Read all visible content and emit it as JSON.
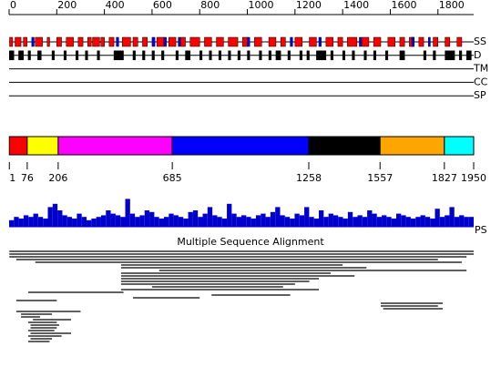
{
  "xlim": [
    0,
    1950
  ],
  "ruler_ticks": [
    0,
    200,
    400,
    600,
    800,
    1000,
    1200,
    1400,
    1600,
    1800
  ],
  "tracks": [
    {
      "label": "SS",
      "spans": [
        {
          "color": "#ff0000",
          "segments": [
            [
              2,
              15
            ],
            [
              25,
              50
            ],
            [
              60,
              75
            ],
            [
              110,
              140
            ],
            [
              160,
              170
            ],
            [
              200,
              220
            ],
            [
              240,
              270
            ],
            [
              290,
              310
            ],
            [
              330,
              345
            ],
            [
              350,
              380
            ],
            [
              385,
              400
            ],
            [
              420,
              440
            ],
            [
              475,
              510
            ],
            [
              520,
              540
            ],
            [
              560,
              580
            ],
            [
              620,
              650
            ],
            [
              670,
              700
            ],
            [
              720,
              740
            ],
            [
              760,
              800
            ],
            [
              820,
              850
            ],
            [
              870,
              900
            ],
            [
              920,
              960
            ],
            [
              980,
              1000
            ],
            [
              1030,
              1060
            ],
            [
              1090,
              1120
            ],
            [
              1140,
              1160
            ],
            [
              1200,
              1230
            ],
            [
              1260,
              1290
            ],
            [
              1330,
              1360
            ],
            [
              1380,
              1400
            ],
            [
              1420,
              1460
            ],
            [
              1480,
              1510
            ],
            [
              1530,
              1560
            ],
            [
              1590,
              1620
            ],
            [
              1640,
              1660
            ],
            [
              1680,
              1700
            ],
            [
              1720,
              1740
            ],
            [
              1780,
              1800
            ],
            [
              1830,
              1850
            ],
            [
              1880,
              1900
            ]
          ]
        },
        {
          "color": "#0000ff",
          "segments": [
            [
              95,
              105
            ],
            [
              450,
              460
            ],
            [
              600,
              612
            ],
            [
              650,
              660
            ],
            [
              710,
              718
            ],
            [
              1000,
              1010
            ],
            [
              1180,
              1190
            ],
            [
              1300,
              1310
            ],
            [
              1470,
              1478
            ],
            [
              1690,
              1700
            ],
            [
              1760,
              1768
            ]
          ]
        }
      ]
    },
    {
      "label": "D",
      "spans": [
        {
          "color": "#000000",
          "segments": [
            [
              1,
              20
            ],
            [
              40,
              60
            ],
            [
              80,
              90
            ],
            [
              120,
              135
            ],
            [
              180,
              190
            ],
            [
              230,
              240
            ],
            [
              280,
              290
            ],
            [
              320,
              330
            ],
            [
              370,
              380
            ],
            [
              440,
              480
            ],
            [
              520,
              530
            ],
            [
              560,
              570
            ],
            [
              600,
              610
            ],
            [
              640,
              650
            ],
            [
              700,
              710
            ],
            [
              740,
              760
            ],
            [
              800,
              810
            ],
            [
              840,
              850
            ],
            [
              880,
              890
            ],
            [
              920,
              930
            ],
            [
              960,
              970
            ],
            [
              1000,
              1010
            ],
            [
              1050,
              1060
            ],
            [
              1090,
              1100
            ],
            [
              1120,
              1140
            ],
            [
              1170,
              1180
            ],
            [
              1220,
              1230
            ],
            [
              1250,
              1260
            ],
            [
              1290,
              1330
            ],
            [
              1350,
              1360
            ],
            [
              1400,
              1410
            ],
            [
              1440,
              1450
            ],
            [
              1490,
              1500
            ],
            [
              1530,
              1540
            ],
            [
              1580,
              1590
            ],
            [
              1640,
              1660
            ],
            [
              1740,
              1750
            ],
            [
              1780,
              1790
            ],
            [
              1830,
              1870
            ],
            [
              1890,
              1900
            ],
            [
              1920,
              1940
            ]
          ]
        }
      ]
    },
    {
      "label": "TM"
    },
    {
      "label": "CC"
    },
    {
      "label": "SP"
    }
  ],
  "domains": {
    "boundaries": [
      1,
      76,
      206,
      685,
      1258,
      1557,
      1827,
      1950
    ],
    "colors": [
      "#ff0000",
      "#ffff00",
      "#ff00ff",
      "#0000ff",
      "#000000",
      "#ffa500",
      "#00ffff"
    ]
  },
  "ps": {
    "label": "PS",
    "values": [
      0.2,
      0.3,
      0.25,
      0.35,
      0.3,
      0.4,
      0.3,
      0.25,
      0.6,
      0.7,
      0.5,
      0.35,
      0.3,
      0.25,
      0.4,
      0.3,
      0.2,
      0.25,
      0.3,
      0.35,
      0.5,
      0.4,
      0.35,
      0.3,
      0.85,
      0.4,
      0.3,
      0.35,
      0.5,
      0.45,
      0.3,
      0.25,
      0.3,
      0.4,
      0.35,
      0.3,
      0.25,
      0.45,
      0.5,
      0.3,
      0.4,
      0.6,
      0.35,
      0.3,
      0.25,
      0.7,
      0.4,
      0.3,
      0.35,
      0.3,
      0.25,
      0.35,
      0.4,
      0.3,
      0.45,
      0.6,
      0.35,
      0.3,
      0.25,
      0.4,
      0.35,
      0.6,
      0.3,
      0.25,
      0.5,
      0.3,
      0.4,
      0.35,
      0.3,
      0.25,
      0.45,
      0.3,
      0.35,
      0.3,
      0.5,
      0.4,
      0.3,
      0.35,
      0.3,
      0.25,
      0.4,
      0.35,
      0.3,
      0.25,
      0.3,
      0.35,
      0.3,
      0.25,
      0.55,
      0.3,
      0.35,
      0.6,
      0.3,
      0.35,
      0.3,
      0.3
    ]
  },
  "msa": {
    "title": "Multiple Sequence Alignment",
    "hits": [
      [
        1,
        1950
      ],
      [
        1,
        1950
      ],
      [
        1,
        1920
      ],
      [
        30,
        1800
      ],
      [
        110,
        1900
      ],
      [
        470,
        1400
      ],
      [
        470,
        1500
      ],
      [
        630,
        1920
      ],
      [
        470,
        1350
      ],
      [
        470,
        1450
      ],
      [
        470,
        1300
      ],
      [
        470,
        1260
      ],
      [
        470,
        1200
      ],
      [
        600,
        1150
      ],
      [
        470,
        1300
      ],
      [
        80,
        480
      ],
      [
        850,
        1180
      ],
      [
        520,
        800
      ],
      [
        30,
        200
      ],
      [
        1560,
        1820
      ],
      [
        1560,
        1800
      ],
      [
        1570,
        1820
      ],
      [
        30,
        300
      ],
      [
        50,
        180
      ],
      [
        50,
        130
      ],
      [
        100,
        260
      ],
      [
        80,
        200
      ],
      [
        90,
        210
      ],
      [
        90,
        200
      ],
      [
        80,
        190
      ],
      [
        90,
        260
      ],
      [
        80,
        220
      ],
      [
        90,
        180
      ],
      [
        80,
        170
      ]
    ]
  }
}
